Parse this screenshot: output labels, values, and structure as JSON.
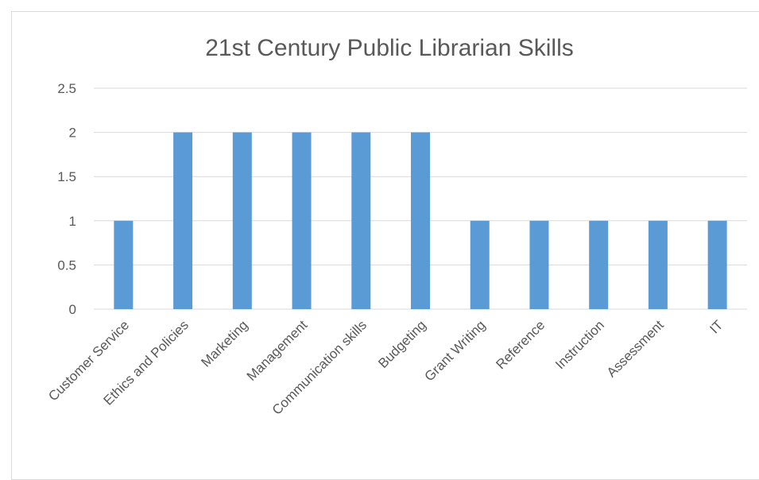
{
  "chart_data": {
    "type": "bar",
    "title": "21st Century Public Librarian Skills",
    "xlabel": "",
    "ylabel": "",
    "categories": [
      "Customer Service",
      "Ethics and Policies",
      "Marketing",
      "Management",
      "Communication skills",
      "Budgeting",
      "Grant Writing",
      "Reference",
      "Instruction",
      "Assessment",
      "IT"
    ],
    "values": [
      1,
      2,
      2,
      2,
      2,
      2,
      1,
      1,
      1,
      1,
      1
    ],
    "ylim": [
      0,
      2.5
    ],
    "yticks": [
      "0",
      "0.5",
      "1",
      "1.5",
      "2",
      "2.5"
    ],
    "grid": true,
    "legend": "none",
    "colors": {
      "bar": "#5b9bd5",
      "grid": "#d9d9d9",
      "text": "#595959"
    }
  }
}
